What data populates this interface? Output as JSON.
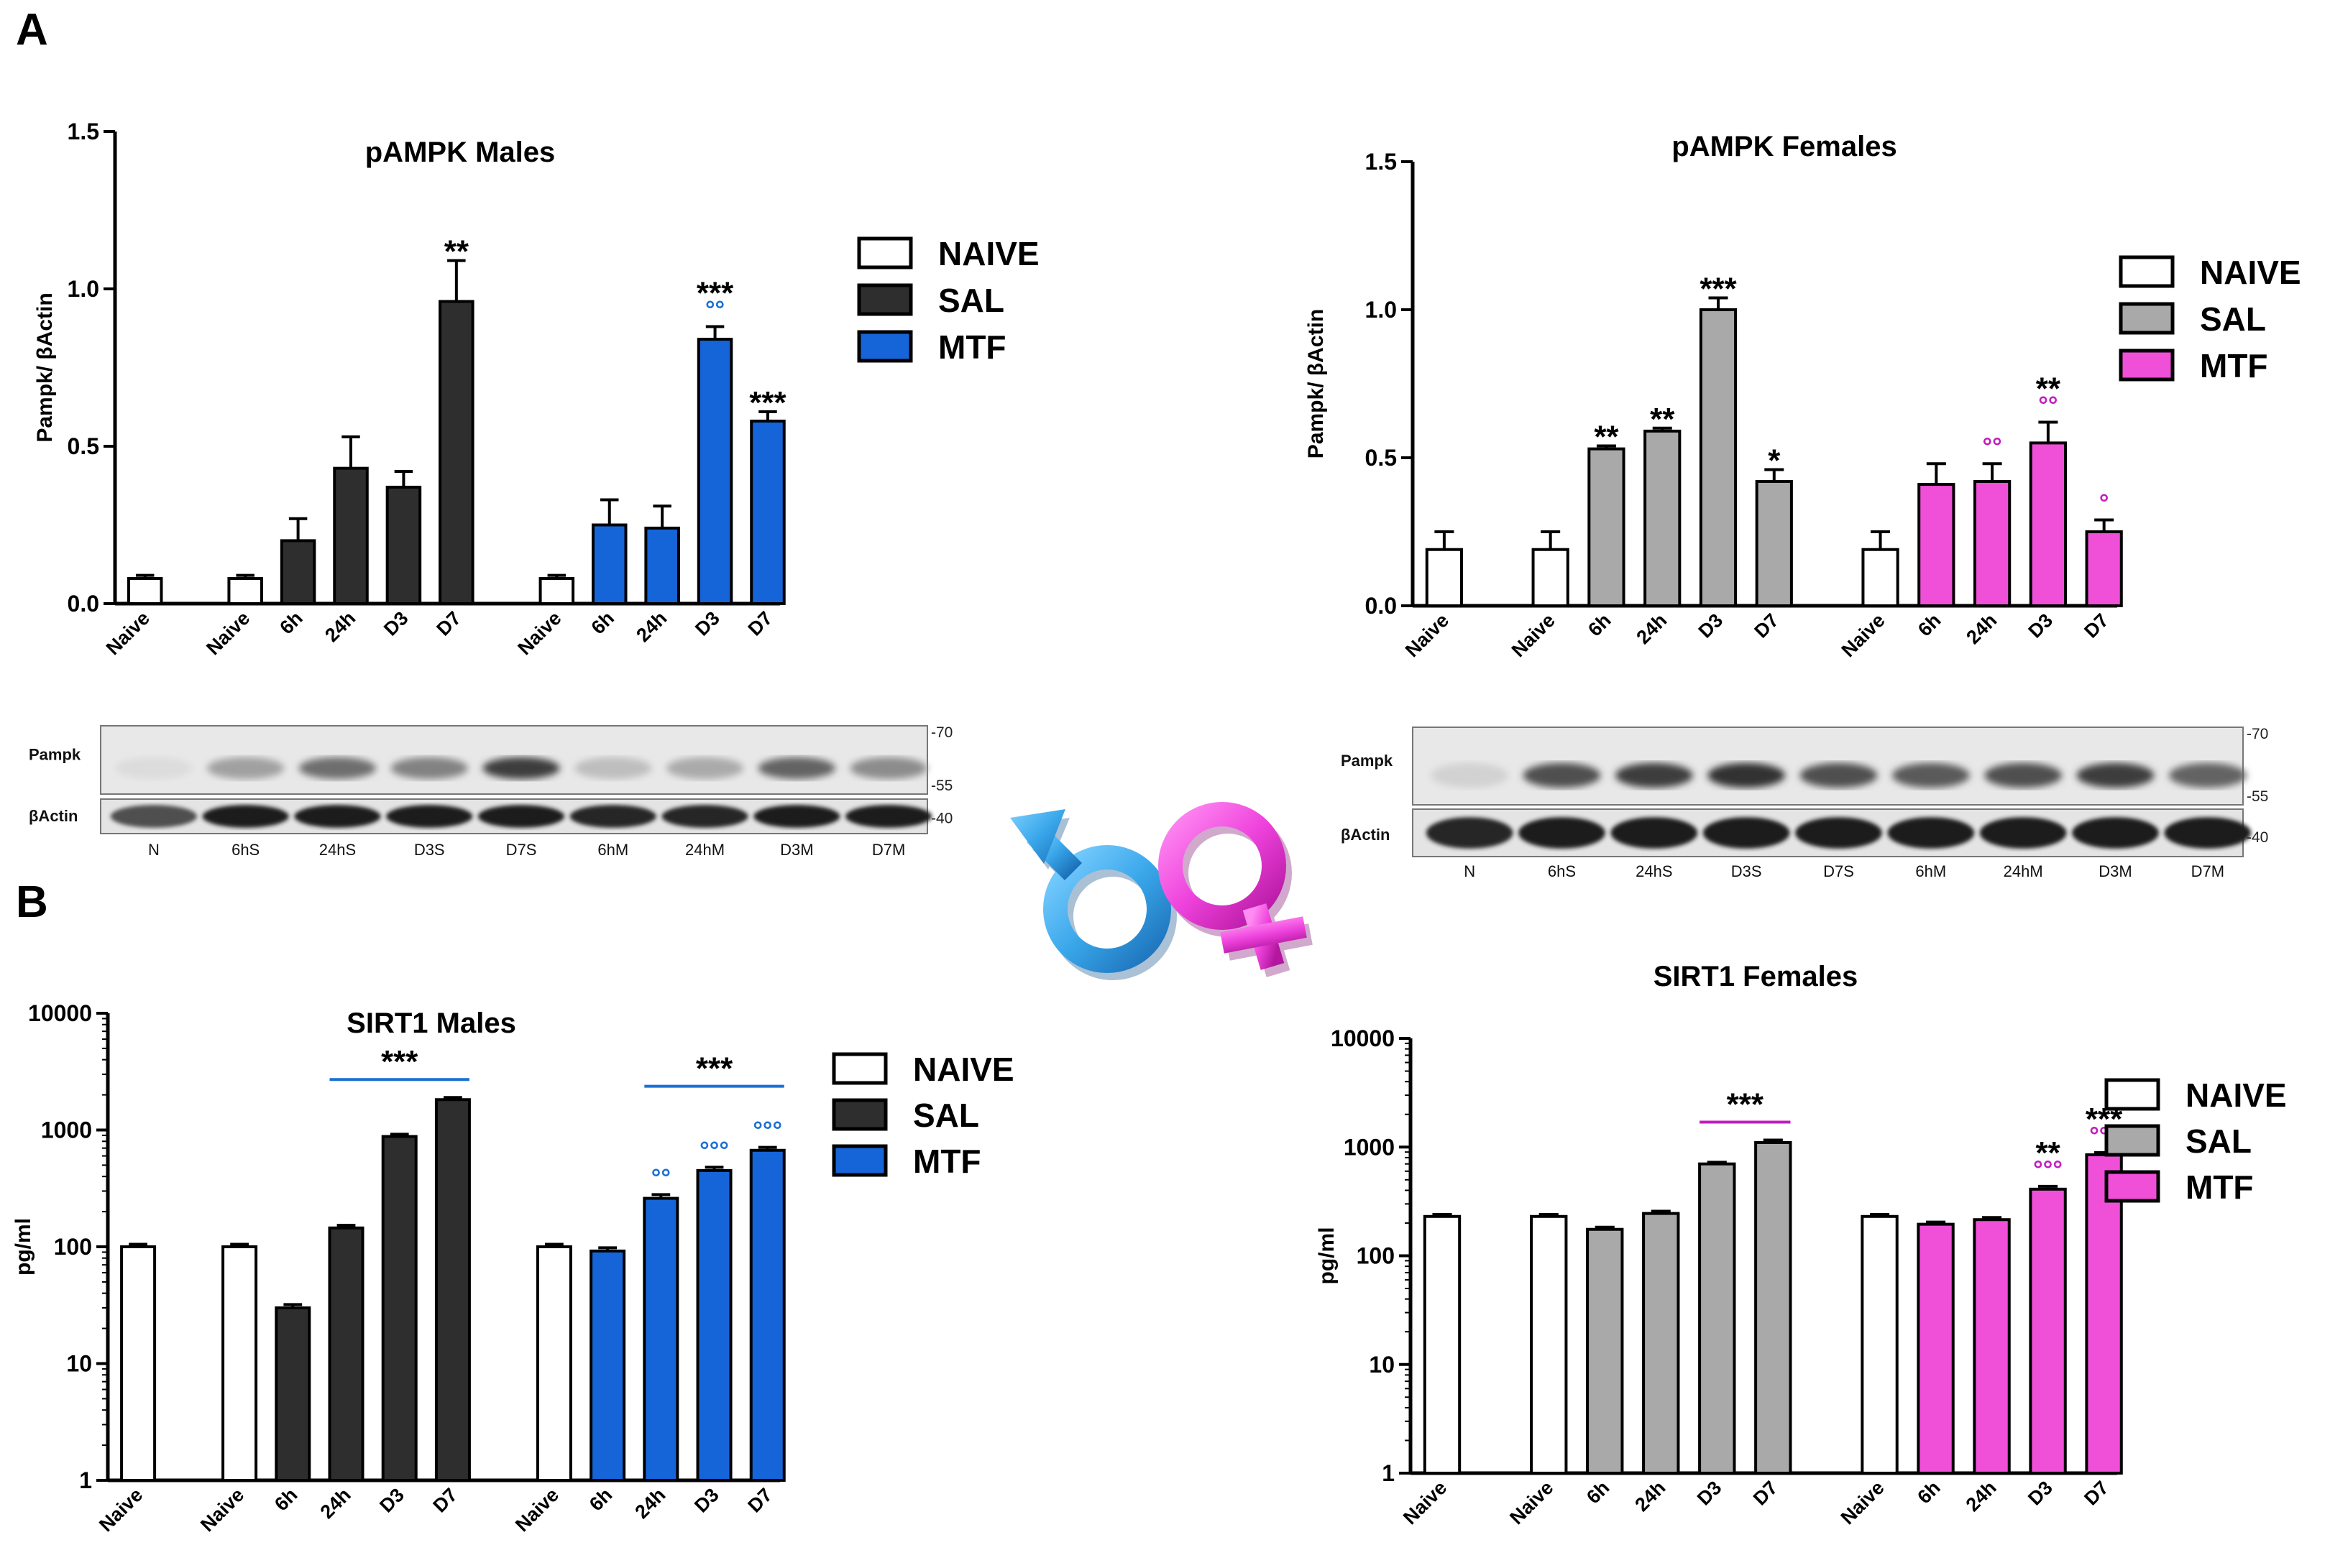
{
  "figure": {
    "panel_a": "A",
    "panel_b": "B",
    "legend": {
      "naive": "NAIVE",
      "sal": "SAL",
      "mtf": "MTF"
    },
    "colors": {
      "male_sal": "#2e2e2e",
      "male_mtf": "#1565d8",
      "female_sal": "#a9a9a9",
      "female_mtf": "#f04fd8",
      "male_deg": "#1a6fd4",
      "female_deg": "#c21cbf"
    }
  },
  "chart_data": [
    {
      "id": "pampk_males",
      "type": "bar",
      "title": "pAMPK Males",
      "ylabel": "Pampk/ βActin",
      "scale": "linear",
      "ylim": [
        0,
        1.5
      ],
      "yticks": [
        "0.0",
        "0.5",
        "1.0",
        "1.5"
      ],
      "categories": [
        "Naive",
        "Naive",
        "6h",
        "24h",
        "D3",
        "D7",
        "Naive",
        "6h",
        "24h",
        "D3",
        "D7"
      ],
      "groups": [
        "NAIVE",
        "NAIVE",
        "SAL",
        "SAL",
        "SAL",
        "SAL",
        "NAIVE",
        "MTF",
        "MTF",
        "MTF",
        "MTF"
      ],
      "values": [
        0.08,
        0.08,
        0.2,
        0.43,
        0.37,
        0.96,
        0.08,
        0.25,
        0.24,
        0.84,
        0.58
      ],
      "errors": [
        0.01,
        0.01,
        0.07,
        0.1,
        0.05,
        0.13,
        0.01,
        0.08,
        0.07,
        0.04,
        0.03
      ],
      "stars": [
        "",
        "",
        "",
        "",
        "",
        "**",
        "",
        "",
        "",
        "***",
        "***"
      ],
      "circles": [
        "",
        "",
        "",
        "",
        "",
        "",
        "",
        "",
        "",
        "°°",
        ""
      ]
    },
    {
      "id": "pampk_females",
      "type": "bar",
      "title": "pAMPK  Females",
      "ylabel": "Pampk/ βActin",
      "scale": "linear",
      "ylim": [
        0,
        1.5
      ],
      "yticks": [
        "0.0",
        "0.5",
        "1.0",
        "1.5"
      ],
      "categories": [
        "Naive",
        "Naive",
        "6h",
        "24h",
        "D3",
        "D7",
        "Naive",
        "6h",
        "24h",
        "D3",
        "D7"
      ],
      "groups": [
        "NAIVE",
        "NAIVE",
        "SAL",
        "SAL",
        "SAL",
        "SAL",
        "NAIVE",
        "MTF",
        "MTF",
        "MTF",
        "MTF"
      ],
      "values": [
        0.19,
        0.19,
        0.53,
        0.59,
        1.0,
        0.42,
        0.19,
        0.41,
        0.42,
        0.55,
        0.25
      ],
      "errors": [
        0.06,
        0.06,
        0.01,
        0.01,
        0.04,
        0.04,
        0.06,
        0.07,
        0.06,
        0.07,
        0.04
      ],
      "stars": [
        "",
        "",
        "**",
        "**",
        "***",
        "*",
        "",
        "",
        "",
        "**",
        ""
      ],
      "circles": [
        "",
        "",
        "",
        "",
        "",
        "",
        "",
        "",
        "°°",
        "°°",
        "°"
      ]
    },
    {
      "id": "sirt1_males",
      "type": "bar",
      "title": "SIRT1 Males",
      "ylabel": "pg/ml",
      "scale": "log",
      "ylim": [
        1,
        10000
      ],
      "yticks": [
        "1",
        "10",
        "100",
        "1000",
        "10000"
      ],
      "categories": [
        "Naive",
        "Naive",
        "6h",
        "24h",
        "D3",
        "D7",
        "Naive",
        "6h",
        "24h",
        "D3",
        "D7"
      ],
      "groups": [
        "NAIVE",
        "NAIVE",
        "SAL",
        "SAL",
        "SAL",
        "SAL",
        "NAIVE",
        "MTF",
        "MTF",
        "MTF",
        "MTF"
      ],
      "values": [
        100,
        100,
        30,
        145,
        880,
        1820,
        100,
        92,
        260,
        450,
        670
      ],
      "errors": [
        5,
        5,
        2,
        8,
        40,
        80,
        5,
        6,
        20,
        30,
        40
      ],
      "stars": [
        "",
        "",
        "",
        "",
        "",
        "",
        "",
        "",
        "",
        "",
        ""
      ],
      "circles": [
        "",
        "",
        "",
        "",
        "",
        "",
        "",
        "",
        "°°",
        "°°°",
        "°°°"
      ],
      "brackets": [
        {
          "from": 3,
          "to": 5,
          "label": "***"
        },
        {
          "from": 8,
          "to": 10,
          "label": "***"
        }
      ]
    },
    {
      "id": "sirt1_females",
      "type": "bar",
      "title": "SIRT1 Females",
      "ylabel": "pg/ml",
      "scale": "log",
      "ylim": [
        1,
        10000
      ],
      "yticks": [
        "1",
        "10",
        "100",
        "1000",
        "10000"
      ],
      "categories": [
        "Naive",
        "Naive",
        "6h",
        "24h",
        "D3",
        "D7",
        "Naive",
        "6h",
        "24h",
        "D3",
        "D7"
      ],
      "groups": [
        "NAIVE",
        "NAIVE",
        "SAL",
        "SAL",
        "SAL",
        "SAL",
        "NAIVE",
        "MTF",
        "MTF",
        "MTF",
        "MTF"
      ],
      "values": [
        230,
        230,
        175,
        245,
        700,
        1100,
        230,
        195,
        215,
        410,
        850
      ],
      "errors": [
        10,
        10,
        8,
        12,
        25,
        60,
        10,
        9,
        10,
        25,
        40
      ],
      "stars": [
        "",
        "",
        "",
        "",
        "",
        "",
        "",
        "",
        "",
        "**",
        "***"
      ],
      "circles": [
        "",
        "",
        "",
        "",
        "",
        "",
        "",
        "",
        "",
        "°°°",
        "°°°"
      ],
      "brackets": [
        {
          "from": 4,
          "to": 5,
          "label": "***"
        }
      ]
    }
  ],
  "blots": [
    {
      "id": "blot_males",
      "row_labels": [
        "Pampk",
        "βActin"
      ],
      "lanes": [
        "N",
        "6hS",
        "24hS",
        "D3S",
        "D7S",
        "6hM",
        "24hM",
        "D3M",
        "D7M"
      ],
      "mw": [
        "-70",
        "-55",
        "-40"
      ],
      "pampk_intensity": [
        0.05,
        0.35,
        0.6,
        0.5,
        0.85,
        0.2,
        0.3,
        0.65,
        0.45
      ],
      "actin_intensity": [
        0.7,
        0.95,
        0.95,
        0.95,
        0.95,
        0.9,
        0.9,
        0.95,
        0.95
      ]
    },
    {
      "id": "blot_females",
      "row_labels": [
        "Pampk",
        "βActin"
      ],
      "lanes": [
        "N",
        "6hS",
        "24hS",
        "D3S",
        "D7S",
        "6hM",
        "24hM",
        "D3M",
        "D7M"
      ],
      "mw": [
        "-70",
        "-55",
        "-40"
      ],
      "pampk_intensity": [
        0.1,
        0.75,
        0.85,
        0.9,
        0.75,
        0.7,
        0.75,
        0.85,
        0.65
      ],
      "actin_intensity": [
        0.9,
        0.95,
        0.95,
        0.95,
        0.95,
        0.95,
        0.95,
        0.95,
        0.95
      ]
    }
  ],
  "symbols": {
    "male": "male-symbol",
    "female": "female-symbol"
  }
}
